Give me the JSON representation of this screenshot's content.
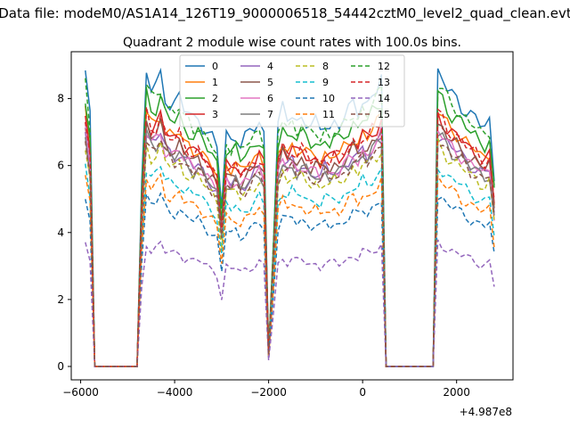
{
  "figure": {
    "suptitle": "Data file: modeM0/AS1A14_126T19_9000006518_54442cztM0_level2_quad_clean.evt",
    "x_offset_label": "+4.987e8"
  },
  "chart_data": {
    "type": "line",
    "title": "Quadrant 2 module wise count rates with 100.0s bins.",
    "xlabel": "",
    "ylabel": "",
    "xlim": [
      -6200,
      3200
    ],
    "ylim": [
      -0.4,
      9.4
    ],
    "xticks": [
      -6000,
      -4000,
      -2000,
      0,
      2000
    ],
    "xtick_labels": [
      "−6000",
      "−4000",
      "−2000",
      "0",
      "2000"
    ],
    "yticks": [
      0,
      2,
      4,
      6,
      8
    ],
    "ytick_labels": [
      "0",
      "2",
      "4",
      "6",
      "8"
    ],
    "grid": false,
    "legend_placement": "top-center",
    "legend_columns": 4,
    "x": [
      -5900,
      -5800,
      -5700,
      -5600,
      -5500,
      -5400,
      -5300,
      -5200,
      -5100,
      -5000,
      -4900,
      -4800,
      -4700,
      -4600,
      -4500,
      -4400,
      -4300,
      -4200,
      -4100,
      -4000,
      -3900,
      -3800,
      -3700,
      -3600,
      -3500,
      -3400,
      -3300,
      -3200,
      -3100,
      -3000,
      -2900,
      -2800,
      -2700,
      -2600,
      -2500,
      -2400,
      -2300,
      -2200,
      -2100,
      -2000,
      -1900,
      -1800,
      -1700,
      -1600,
      -1500,
      -1400,
      -1300,
      -1200,
      -1100,
      -1000,
      -900,
      -800,
      -700,
      -600,
      -500,
      -400,
      -300,
      -200,
      -100,
      0,
      100,
      200,
      300,
      400,
      500,
      600,
      700,
      800,
      900,
      1000,
      1100,
      1200,
      1300,
      1400,
      1500,
      1600,
      1700,
      1800,
      1900,
      2000,
      2100,
      2200,
      2300,
      2400,
      2500,
      2600,
      2700,
      2800
    ],
    "profile": [
      1.0,
      0.85,
      0,
      0,
      0,
      0,
      0,
      0,
      0,
      0,
      0,
      0,
      0.62,
      1.0,
      0.95,
      0.96,
      1.0,
      0.93,
      0.91,
      0.9,
      0.92,
      0.88,
      0.87,
      0.85,
      0.86,
      0.83,
      0.8,
      0.78,
      0.75,
      0.55,
      0.8,
      0.78,
      0.8,
      0.76,
      0.78,
      0.8,
      0.82,
      0.84,
      0.8,
      0.05,
      0.42,
      0.82,
      0.88,
      0.85,
      0.87,
      0.84,
      0.86,
      0.84,
      0.82,
      0.83,
      0.81,
      0.84,
      0.82,
      0.84,
      0.83,
      0.85,
      0.87,
      0.9,
      0.88,
      0.92,
      0.9,
      0.93,
      0.95,
      0.98,
      0,
      0,
      0,
      0,
      0,
      0,
      0,
      0,
      0,
      0,
      0,
      1.0,
      0.98,
      0.95,
      0.93,
      0.92,
      0.9,
      0.88,
      0.86,
      0.85,
      0.83,
      0.82,
      0.84,
      0.65
    ],
    "series": [
      {
        "name": "0",
        "color": "#1f77b4",
        "dash": "solid",
        "peak": 8.7,
        "jitter": 0.35
      },
      {
        "name": "1",
        "color": "#ff7f0e",
        "dash": "solid",
        "peak": 7.6,
        "jitter": 0.3
      },
      {
        "name": "2",
        "color": "#2ca02c",
        "dash": "solid",
        "peak": 8.1,
        "jitter": 0.3
      },
      {
        "name": "3",
        "color": "#d62728",
        "dash": "solid",
        "peak": 7.5,
        "jitter": 0.3
      },
      {
        "name": "4",
        "color": "#9467bd",
        "dash": "solid",
        "peak": 7.0,
        "jitter": 0.3
      },
      {
        "name": "5",
        "color": "#8c564b",
        "dash": "solid",
        "peak": 7.2,
        "jitter": 0.3
      },
      {
        "name": "6",
        "color": "#e377c2",
        "dash": "solid",
        "peak": 7.0,
        "jitter": 0.3
      },
      {
        "name": "7",
        "color": "#7f7f7f",
        "dash": "solid",
        "peak": 6.9,
        "jitter": 0.3
      },
      {
        "name": "8",
        "color": "#bcbd22",
        "dash": "dashed",
        "peak": 6.6,
        "jitter": 0.25
      },
      {
        "name": "9",
        "color": "#17becf",
        "dash": "dashed",
        "peak": 6.0,
        "jitter": 0.25
      },
      {
        "name": "10",
        "color": "#1f77b4",
        "dash": "dashed",
        "peak": 5.1,
        "jitter": 0.2
      },
      {
        "name": "11",
        "color": "#ff7f0e",
        "dash": "dashed",
        "peak": 5.6,
        "jitter": 0.25
      },
      {
        "name": "12",
        "color": "#2ca02c",
        "dash": "dashed",
        "peak": 8.4,
        "jitter": 0.3
      },
      {
        "name": "13",
        "color": "#d62728",
        "dash": "dashed",
        "peak": 7.5,
        "jitter": 0.3
      },
      {
        "name": "14",
        "color": "#9467bd",
        "dash": "dashed",
        "peak": 3.7,
        "jitter": 0.2
      },
      {
        "name": "15",
        "color": "#8c564b",
        "dash": "dashed",
        "peak": 6.8,
        "jitter": 0.3
      }
    ]
  }
}
